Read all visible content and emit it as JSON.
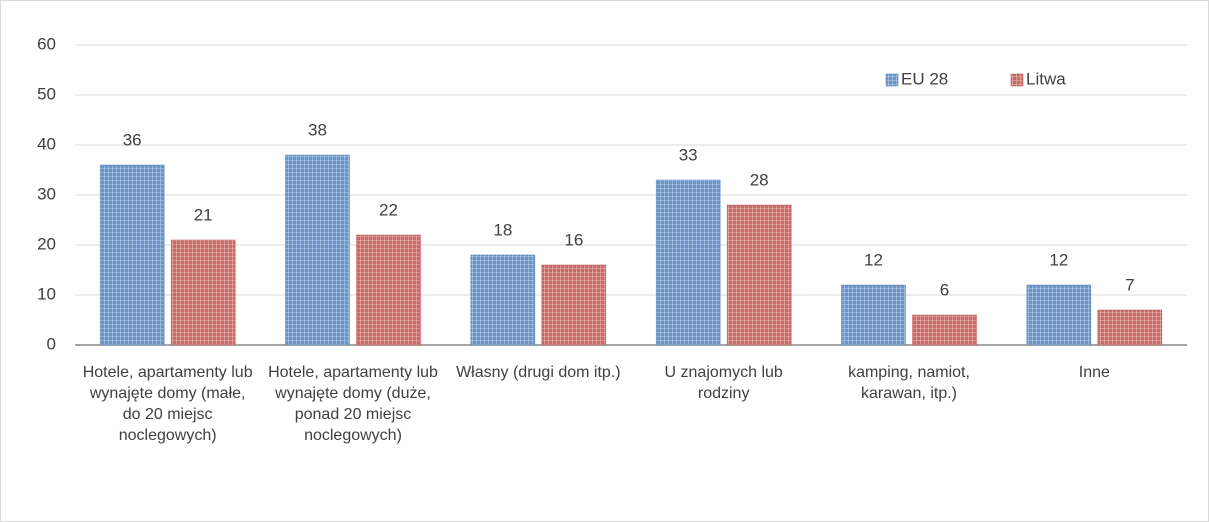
{
  "chart_data": {
    "type": "bar",
    "categories": [
      "Hotele, apartamenty lub wynajęte domy (małe, do 20 miejsc noclegowych)",
      "Hotele, apartamenty lub wynajęte domy (duże, ponad 20 miejsc noclegowych)",
      "Własny (drugi dom itp.)",
      "U znajomych lub rodziny",
      "kamping, namiot, karawan, itp.)",
      "Inne"
    ],
    "series": [
      {
        "name": "EU 28",
        "color": "#4f81bd",
        "values": [
          36,
          38,
          18,
          33,
          12,
          12
        ]
      },
      {
        "name": "Litwa",
        "color": "#c0504d",
        "values": [
          21,
          22,
          16,
          28,
          6,
          7
        ]
      }
    ],
    "ylim": [
      0,
      60
    ],
    "yticks": [
      0,
      10,
      20,
      30,
      40,
      50,
      60
    ],
    "grid": true,
    "legend": "top-right"
  }
}
